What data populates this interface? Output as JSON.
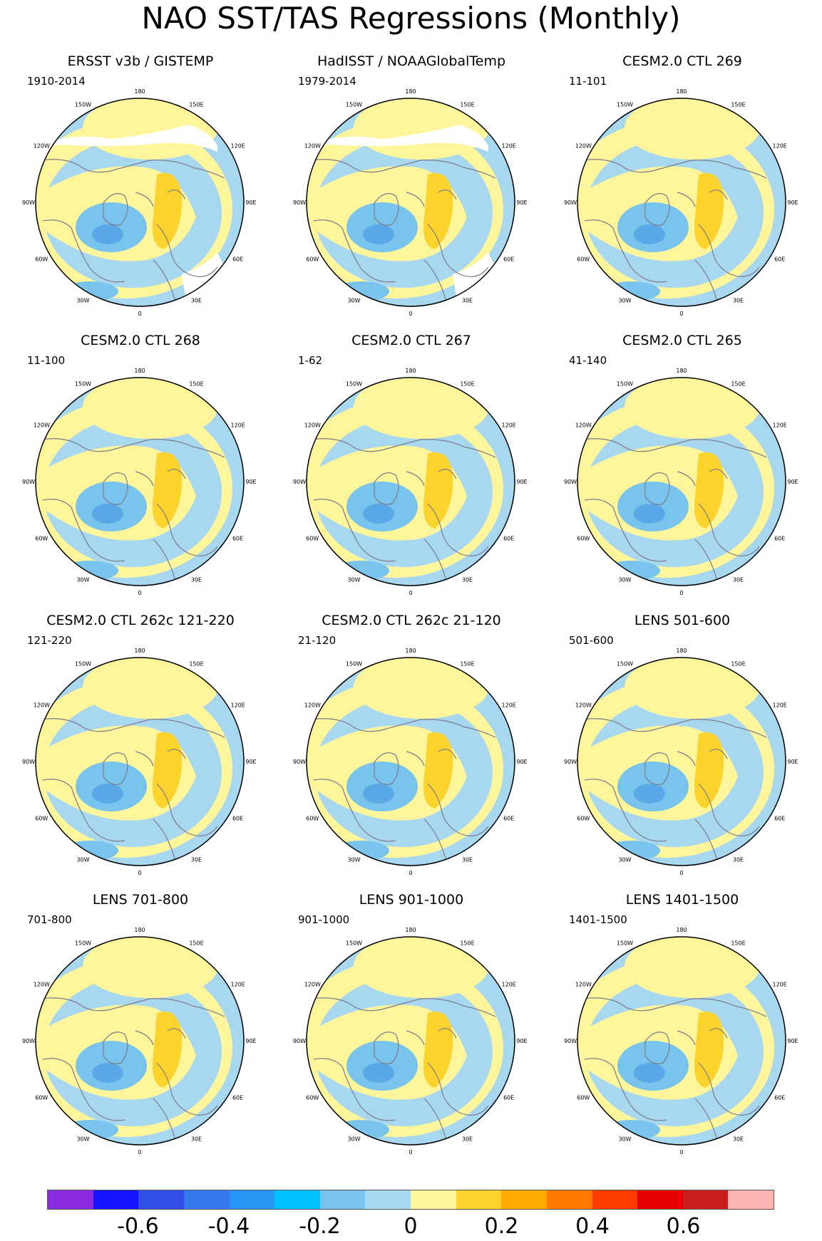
{
  "title": "NAO SST/TAS Regressions (Monthly)",
  "longitude_labels": [
    "180",
    "150E",
    "120E",
    "90E",
    "60E",
    "30E",
    "0",
    "30W",
    "60W",
    "90W",
    "120W",
    "150W"
  ],
  "panels": [
    {
      "title": "ERSST v3b / GISTEMP",
      "period": "1910-2014",
      "missing": true
    },
    {
      "title": "HadISST / NOAAGlobalTemp",
      "period": "1979-2014",
      "missing": true
    },
    {
      "title": "CESM2.0 CTL 269",
      "period": "11-101",
      "missing": false
    },
    {
      "title": "CESM2.0 CTL 268",
      "period": "11-100",
      "missing": false
    },
    {
      "title": "CESM2.0 CTL 267",
      "period": "1-62",
      "missing": false
    },
    {
      "title": "CESM2.0 CTL 265",
      "period": "41-140",
      "missing": false
    },
    {
      "title": "CESM2.0 CTL 262c 121-220",
      "period": "121-220",
      "missing": false
    },
    {
      "title": "CESM2.0 CTL 262c 21-120",
      "period": "21-120",
      "missing": false
    },
    {
      "title": "LENS 501-600",
      "period": "501-600",
      "missing": false
    },
    {
      "title": "LENS 701-800",
      "period": "701-800",
      "missing": false
    },
    {
      "title": "LENS 901-1000",
      "period": "901-1000",
      "missing": false
    },
    {
      "title": "LENS 1401-1500",
      "period": "1401-1500",
      "missing": false
    }
  ],
  "colors": {
    "neg_weak": "#a8d8f0",
    "neg_mid": "#78c4ec",
    "neg_strong": "#5aa8e8",
    "pos_weak": "#fff59a",
    "pos_mid": "#fcd22c",
    "coast": "#7b7b8b",
    "missing": "#ffffff"
  },
  "colorbar": {
    "colors": [
      "#8a2be2",
      "#1414ff",
      "#3050e8",
      "#3878ee",
      "#2896f5",
      "#00c0ff",
      "#78c4ec",
      "#a8d8f0",
      "#fff59a",
      "#fcd22c",
      "#ffaa00",
      "#ff7a00",
      "#ff3c00",
      "#e60000",
      "#c81e1e",
      "#ffb4b4"
    ],
    "labels": [
      "-0.6",
      "-0.4",
      "-0.2",
      "0",
      "0.2",
      "0.4",
      "0.6"
    ]
  }
}
